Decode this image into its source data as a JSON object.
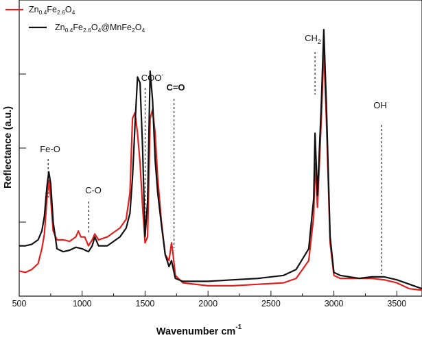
{
  "chart_data": {
    "type": "line",
    "xlabel": "Wavenumber cm",
    "xlabel_sup": "-1",
    "ylabel": "Reflectance (a.u.)",
    "xlim": [
      500,
      3700
    ],
    "ylim": [
      0,
      1
    ],
    "x_ticks": [
      "500",
      "1000",
      "1500",
      "2000",
      "2500",
      "3000",
      "3500"
    ],
    "y_ticks": [],
    "grid": false,
    "legend_position": "top-left",
    "series": [
      {
        "name": "Zn0.4Fe2.6O4",
        "color": "#e0201e",
        "points": [
          [
            500,
            0.085
          ],
          [
            550,
            0.08
          ],
          [
            600,
            0.09
          ],
          [
            650,
            0.11
          ],
          [
            680,
            0.16
          ],
          [
            700,
            0.21
          ],
          [
            720,
            0.33
          ],
          [
            735,
            0.39
          ],
          [
            750,
            0.33
          ],
          [
            770,
            0.22
          ],
          [
            800,
            0.19
          ],
          [
            850,
            0.19
          ],
          [
            900,
            0.185
          ],
          [
            950,
            0.2
          ],
          [
            970,
            0.22
          ],
          [
            990,
            0.2
          ],
          [
            1020,
            0.2
          ],
          [
            1050,
            0.17
          ],
          [
            1080,
            0.19
          ],
          [
            1100,
            0.21
          ],
          [
            1130,
            0.19
          ],
          [
            1200,
            0.2
          ],
          [
            1300,
            0.23
          ],
          [
            1350,
            0.26
          ],
          [
            1380,
            0.35
          ],
          [
            1400,
            0.6
          ],
          [
            1420,
            0.62
          ],
          [
            1440,
            0.55
          ],
          [
            1460,
            0.45
          ],
          [
            1480,
            0.3
          ],
          [
            1500,
            0.18
          ],
          [
            1520,
            0.2
          ],
          [
            1540,
            0.6
          ],
          [
            1560,
            0.63
          ],
          [
            1580,
            0.55
          ],
          [
            1600,
            0.4
          ],
          [
            1630,
            0.25
          ],
          [
            1660,
            0.14
          ],
          [
            1690,
            0.12
          ],
          [
            1710,
            0.18
          ],
          [
            1720,
            0.15
          ],
          [
            1740,
            0.07
          ],
          [
            1800,
            0.045
          ],
          [
            2000,
            0.035
          ],
          [
            2200,
            0.035
          ],
          [
            2400,
            0.04
          ],
          [
            2600,
            0.045
          ],
          [
            2700,
            0.06
          ],
          [
            2800,
            0.12
          ],
          [
            2840,
            0.27
          ],
          [
            2850,
            0.45
          ],
          [
            2870,
            0.3
          ],
          [
            2900,
            0.6
          ],
          [
            2920,
            0.83
          ],
          [
            2940,
            0.6
          ],
          [
            2970,
            0.18
          ],
          [
            3000,
            0.07
          ],
          [
            3050,
            0.06
          ],
          [
            3200,
            0.06
          ],
          [
            3300,
            0.06
          ],
          [
            3400,
            0.055
          ],
          [
            3500,
            0.045
          ],
          [
            3600,
            0.025
          ],
          [
            3700,
            0.02
          ]
        ]
      },
      {
        "name": "Zn0.4Fe2.6O4@MnFe2O4",
        "color": "#111111",
        "points": [
          [
            500,
            0.17
          ],
          [
            550,
            0.17
          ],
          [
            600,
            0.175
          ],
          [
            650,
            0.19
          ],
          [
            680,
            0.22
          ],
          [
            700,
            0.27
          ],
          [
            720,
            0.37
          ],
          [
            735,
            0.42
          ],
          [
            750,
            0.38
          ],
          [
            770,
            0.25
          ],
          [
            800,
            0.16
          ],
          [
            850,
            0.15
          ],
          [
            900,
            0.155
          ],
          [
            950,
            0.165
          ],
          [
            1000,
            0.16
          ],
          [
            1050,
            0.15
          ],
          [
            1080,
            0.17
          ],
          [
            1100,
            0.2
          ],
          [
            1130,
            0.17
          ],
          [
            1200,
            0.17
          ],
          [
            1300,
            0.2
          ],
          [
            1350,
            0.23
          ],
          [
            1380,
            0.28
          ],
          [
            1400,
            0.4
          ],
          [
            1420,
            0.58
          ],
          [
            1440,
            0.74
          ],
          [
            1460,
            0.72
          ],
          [
            1480,
            0.5
          ],
          [
            1500,
            0.2
          ],
          [
            1520,
            0.32
          ],
          [
            1540,
            0.76
          ],
          [
            1560,
            0.66
          ],
          [
            1580,
            0.46
          ],
          [
            1600,
            0.35
          ],
          [
            1630,
            0.24
          ],
          [
            1660,
            0.14
          ],
          [
            1690,
            0.1
          ],
          [
            1710,
            0.12
          ],
          [
            1720,
            0.1
          ],
          [
            1740,
            0.06
          ],
          [
            1800,
            0.05
          ],
          [
            2000,
            0.05
          ],
          [
            2200,
            0.055
          ],
          [
            2400,
            0.06
          ],
          [
            2600,
            0.07
          ],
          [
            2700,
            0.09
          ],
          [
            2800,
            0.16
          ],
          [
            2840,
            0.33
          ],
          [
            2850,
            0.55
          ],
          [
            2870,
            0.34
          ],
          [
            2900,
            0.65
          ],
          [
            2920,
            0.9
          ],
          [
            2940,
            0.65
          ],
          [
            2970,
            0.2
          ],
          [
            3000,
            0.08
          ],
          [
            3050,
            0.07
          ],
          [
            3200,
            0.06
          ],
          [
            3300,
            0.065
          ],
          [
            3400,
            0.065
          ],
          [
            3500,
            0.055
          ],
          [
            3600,
            0.04
          ],
          [
            3700,
            0.025
          ]
        ]
      }
    ],
    "annotations": [
      {
        "label": "Fe-O",
        "x": 730,
        "bold": false
      },
      {
        "label": "C-O",
        "x": 1050,
        "bold": false
      },
      {
        "label": "COO",
        "label_sup": "-",
        "x": 1500,
        "bold": false
      },
      {
        "label": "C=O",
        "x": 1730,
        "bold": true
      },
      {
        "label": "CH",
        "label_sub": "2",
        "x": 2850,
        "bold": false
      },
      {
        "label": "OH",
        "x": 3380,
        "bold": false
      }
    ]
  },
  "legend": {
    "items": [
      {
        "base": "Zn",
        "sub1": "0.4",
        "mid": "Fe",
        "sub2": "2.6",
        "end": "O",
        "sub3": "4",
        "tail": ""
      },
      {
        "base": "Zn",
        "sub1": "0.4",
        "mid": "Fe",
        "sub2": "2.6",
        "end": "O",
        "sub3": "4",
        "tail": "@MnFe",
        "sub4": "2",
        "tail2": "O",
        "sub5": "4"
      }
    ]
  }
}
